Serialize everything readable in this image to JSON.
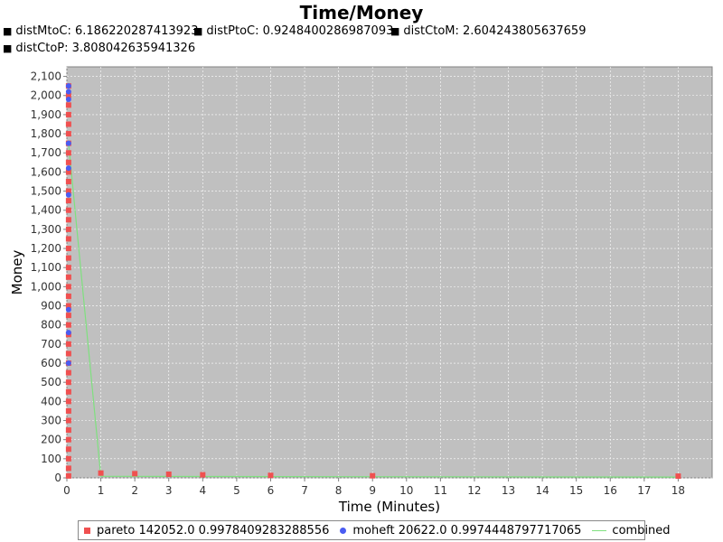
{
  "chart_data": {
    "type": "scatter",
    "title": "Time/Money",
    "subtitles": [
      "distMtoC: 6.186220287413923",
      "distPtoC: 0.9248400286987093",
      "distCtoM: 2.604243805637659",
      "distCtoP: 3.808042635941326"
    ],
    "xlabel": "Time (Minutes)",
    "ylabel": "Money",
    "xlim": [
      0,
      19
    ],
    "ylim": [
      0,
      2150
    ],
    "xticks": [
      0,
      1,
      2,
      3,
      4,
      5,
      6,
      7,
      8,
      9,
      10,
      11,
      12,
      13,
      14,
      15,
      16,
      17,
      18
    ],
    "yticks": [
      0,
      100,
      200,
      300,
      400,
      500,
      600,
      700,
      800,
      900,
      1000,
      1100,
      1200,
      1300,
      1400,
      1500,
      1600,
      1700,
      1800,
      1900,
      2000,
      2100
    ],
    "grid": true,
    "legend_position": "bottom",
    "background": "#c0c0c0",
    "series": [
      {
        "name": "pareto 142052.0 0.9978409283288556",
        "marker": "square",
        "color": "#f05050",
        "points": [
          [
            0.05,
            2050
          ],
          [
            0.05,
            2000
          ],
          [
            0.05,
            1950
          ],
          [
            0.05,
            1900
          ],
          [
            0.05,
            1850
          ],
          [
            0.05,
            1800
          ],
          [
            0.05,
            1750
          ],
          [
            0.05,
            1700
          ],
          [
            0.05,
            1650
          ],
          [
            0.05,
            1600
          ],
          [
            0.05,
            1550
          ],
          [
            0.05,
            1500
          ],
          [
            0.05,
            1450
          ],
          [
            0.05,
            1400
          ],
          [
            0.05,
            1350
          ],
          [
            0.05,
            1300
          ],
          [
            0.05,
            1250
          ],
          [
            0.05,
            1200
          ],
          [
            0.05,
            1150
          ],
          [
            0.05,
            1100
          ],
          [
            0.05,
            1050
          ],
          [
            0.05,
            1000
          ],
          [
            0.05,
            950
          ],
          [
            0.05,
            900
          ],
          [
            0.05,
            850
          ],
          [
            0.05,
            800
          ],
          [
            0.05,
            750
          ],
          [
            0.05,
            700
          ],
          [
            0.05,
            650
          ],
          [
            0.05,
            600
          ],
          [
            0.05,
            550
          ],
          [
            0.05,
            500
          ],
          [
            0.05,
            450
          ],
          [
            0.05,
            400
          ],
          [
            0.05,
            350
          ],
          [
            0.05,
            300
          ],
          [
            0.05,
            250
          ],
          [
            0.05,
            200
          ],
          [
            0.05,
            150
          ],
          [
            0.05,
            100
          ],
          [
            0.05,
            50
          ],
          [
            0.05,
            10
          ],
          [
            1,
            25
          ],
          [
            2,
            22
          ],
          [
            3,
            19
          ],
          [
            4,
            16
          ],
          [
            6,
            13
          ],
          [
            9,
            11
          ],
          [
            18,
            9
          ]
        ]
      },
      {
        "name": "moheft 20622.0 0.9974448797717065",
        "marker": "circle",
        "color": "#4a5cf2",
        "points": [
          [
            0.05,
            2050
          ],
          [
            0.05,
            2020
          ],
          [
            0.05,
            1980
          ],
          [
            0.05,
            1750
          ],
          [
            0.05,
            1620
          ],
          [
            0.05,
            1480
          ],
          [
            0.05,
            880
          ],
          [
            0.05,
            760
          ],
          [
            0.05,
            600
          ]
        ]
      },
      {
        "name": "combined",
        "marker": "line",
        "color": "#7fe07f",
        "points": [
          [
            0.05,
            1750
          ],
          [
            1,
            8
          ],
          [
            18,
            4
          ]
        ]
      }
    ]
  }
}
